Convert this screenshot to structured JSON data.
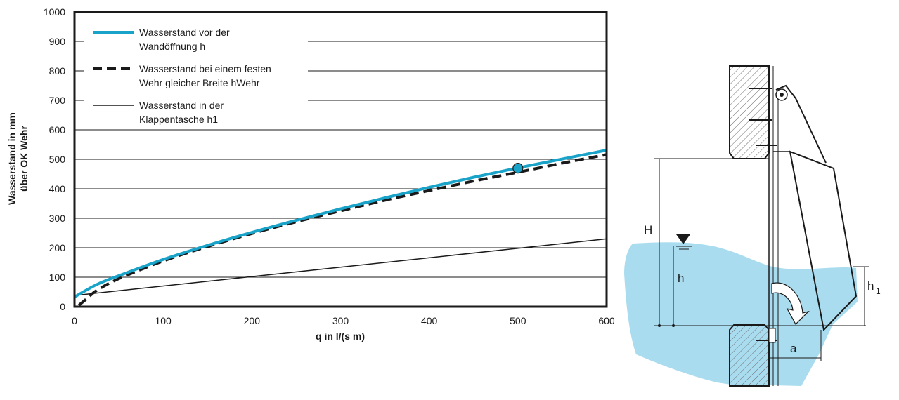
{
  "chart_data": {
    "type": "line",
    "xlabel": "q in l/(s m)",
    "ylabel_line1": "Wasserstand in mm",
    "ylabel_line2": "über OK Wehr",
    "xlim": [
      0,
      600
    ],
    "ylim": [
      0,
      1000
    ],
    "x_ticks": [
      0,
      100,
      200,
      300,
      400,
      500,
      600
    ],
    "y_ticks": [
      0,
      100,
      200,
      300,
      400,
      500,
      600,
      700,
      800,
      900,
      1000
    ],
    "grid": "horizontal",
    "legend_position": "top-left",
    "series": [
      {
        "name_line1": "Wasserstand vor der",
        "name_line2": "Wandöffnung h",
        "style": "solid-thick",
        "color": "#1aa3c8",
        "x": [
          0,
          25,
          50,
          100,
          150,
          200,
          250,
          300,
          350,
          400,
          450,
          500,
          550,
          600
        ],
        "y": [
          33,
          75,
          105,
          160,
          208,
          252,
          293,
          332,
          369,
          405,
          439,
          471,
          501,
          531
        ]
      },
      {
        "name_line1": "Wasserstand bei einem festen",
        "name_line2": "Wehr gleicher Breite hWehr",
        "style": "dashed-thick",
        "color": "#1a1a1a",
        "x": [
          5,
          15,
          25,
          50,
          100,
          150,
          200,
          250,
          300,
          350,
          400,
          450,
          500,
          550,
          600
        ],
        "y": [
          5,
          30,
          55,
          95,
          155,
          204,
          248,
          288,
          325,
          361,
          394,
          426,
          456,
          487,
          516
        ]
      },
      {
        "name_line1": "Wasserstand in der",
        "name_line2": "Klappentasche h1",
        "style": "solid-thin",
        "color": "#1a1a1a",
        "x": [
          0,
          600
        ],
        "y": [
          38,
          230
        ]
      }
    ],
    "marker": {
      "x": 500,
      "y": 470,
      "color": "#1aa3c8"
    }
  },
  "diagram": {
    "label_H": "H",
    "label_h": "h",
    "label_h1": "h",
    "label_h1_sub": "1",
    "label_a": "a",
    "water_color": "#a9dcef",
    "hatch_color": "#555555"
  }
}
